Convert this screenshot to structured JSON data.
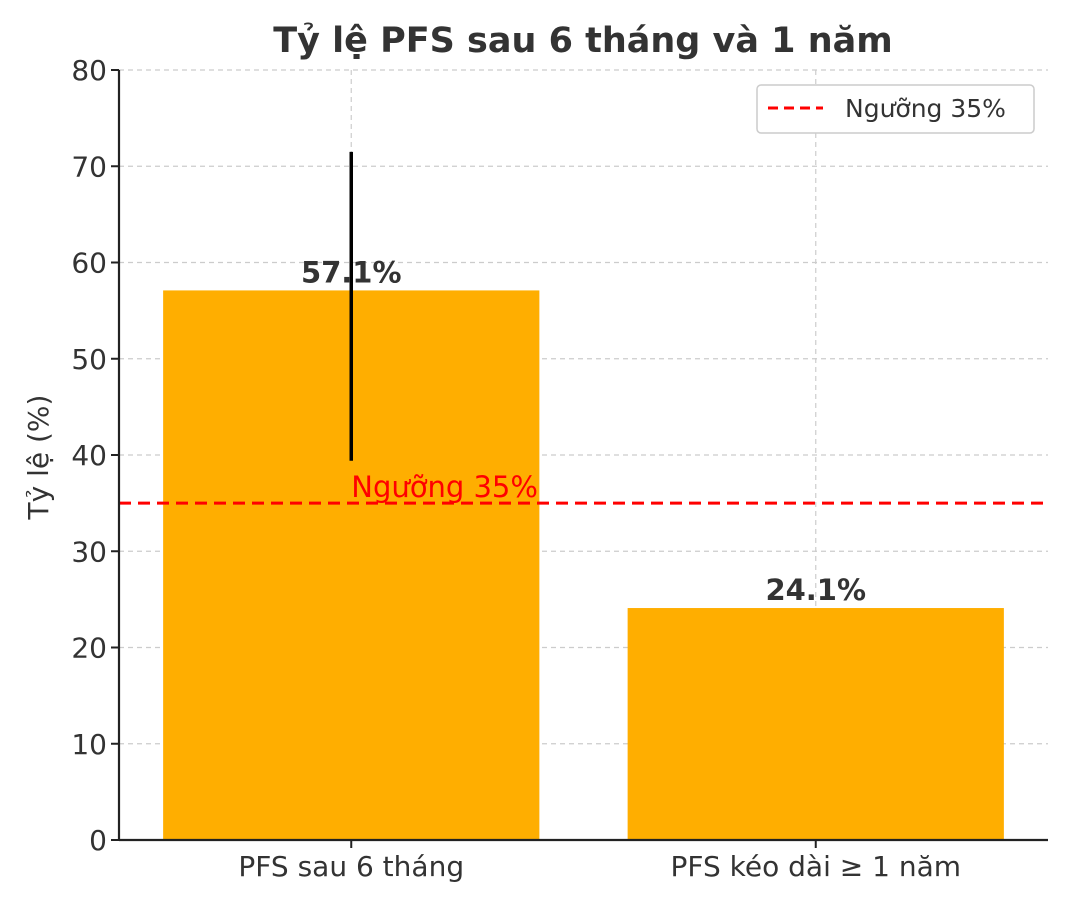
{
  "chart_data": {
    "type": "bar",
    "title": "Tỷ lệ PFS sau 6 tháng và 1 năm",
    "xlabel": "",
    "ylabel": "Tỷ lệ (%)",
    "categories": [
      "PFS sau 6 tháng",
      "PFS kéo dài ≥ 1 năm"
    ],
    "values": [
      57.1,
      24.1
    ],
    "value_labels": [
      "57.1%",
      "24.1%"
    ],
    "error_bars": [
      {
        "category": "PFS sau 6 tháng",
        "low": 39.4,
        "high": 71.5
      }
    ],
    "ylim": [
      0,
      80
    ],
    "yticks": [
      0,
      10,
      20,
      30,
      40,
      50,
      60,
      70,
      80
    ],
    "grid": true,
    "reference_line": {
      "value": 35,
      "label": "Ngưỡng 35%",
      "color": "#ff0000",
      "style": "dashed"
    },
    "legend": {
      "position": "top-right",
      "entries": [
        "Ngưỡng 35%"
      ]
    },
    "colors": {
      "bar": "#ffae00",
      "error_bar": "#000000",
      "text": "#333333",
      "grid": "#cccccc"
    }
  }
}
